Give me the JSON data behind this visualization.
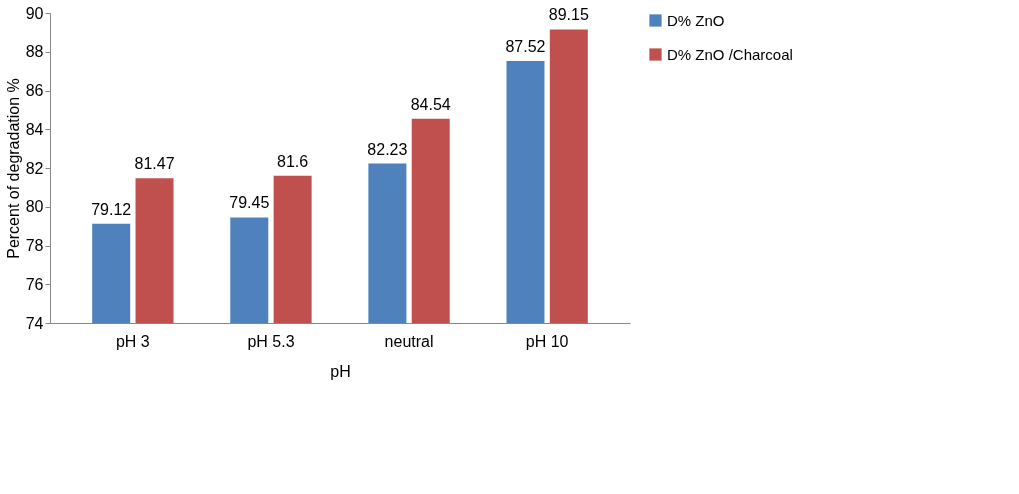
{
  "chart_data": {
    "type": "bar",
    "xlabel": "pH",
    "ylabel": "Percent of degradation %",
    "categories": [
      "pH 3",
      "pH 5.3",
      "neutral",
      "pH 10"
    ],
    "series": [
      {
        "name": "D% ZnO",
        "color": "#4f81bd",
        "values": [
          79.12,
          79.45,
          82.23,
          87.52
        ]
      },
      {
        "name": "D% ZnO /Charcoal",
        "color": "#c0504d",
        "values": [
          81.47,
          81.6,
          84.54,
          89.15
        ]
      }
    ],
    "ylim": [
      74,
      90
    ],
    "yticks": [
      74,
      76,
      78,
      80,
      82,
      84,
      86,
      88,
      90
    ],
    "grid": false,
    "legend": "right",
    "data_labels": true
  }
}
